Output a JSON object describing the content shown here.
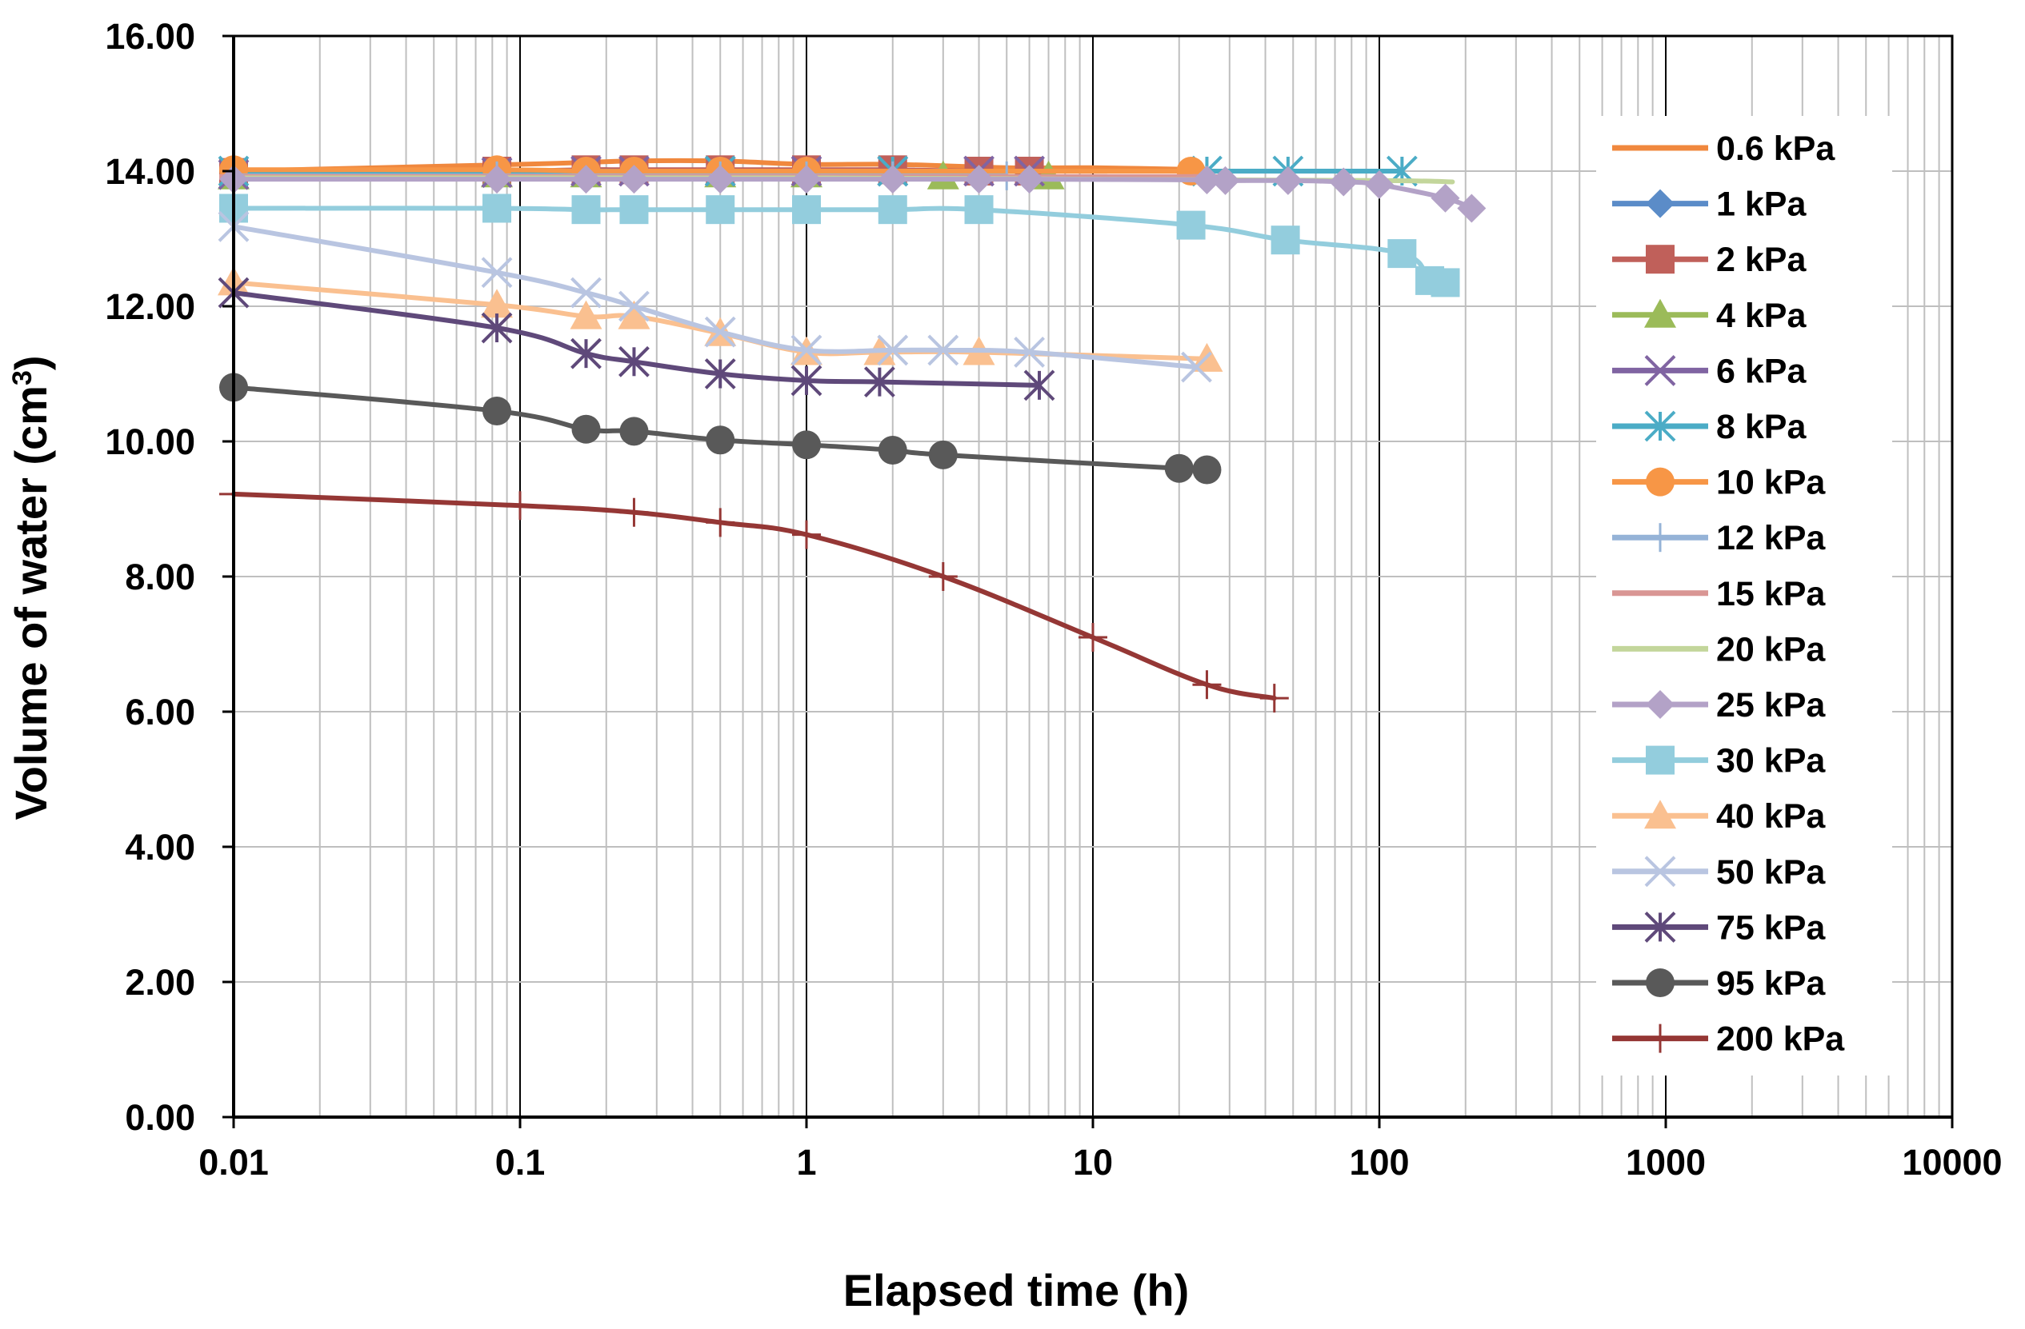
{
  "chart_data": {
    "type": "line",
    "title": "",
    "xlabel": "Elapsed time (h)",
    "ylabel": "Volume of water (cm3)",
    "ylabel_main": "Volume of water (cm",
    "ylabel_sup": "3",
    "ylabel_close": ")",
    "xscale": "log",
    "xlim": [
      0.01,
      10000
    ],
    "ylim": [
      0,
      16
    ],
    "x_ticks": [
      0.01,
      0.1,
      1,
      10,
      100,
      1000,
      10000
    ],
    "x_tick_labels": [
      "0.01",
      "0.1",
      "1",
      "10",
      "100",
      "1000",
      "10000"
    ],
    "y_ticks": [
      0,
      2,
      4,
      6,
      8,
      10,
      12,
      14,
      16
    ],
    "y_tick_labels": [
      "0.00",
      "2.00",
      "4.00",
      "6.00",
      "8.00",
      "10.00",
      "12.00",
      "14.00",
      "16.00"
    ],
    "grid": true,
    "legend_position": "right",
    "series": [
      {
        "name": "0.6 kPa",
        "color": "#F0883E",
        "marker": "none",
        "x": [
          0.01,
          0.1,
          0.25,
          0.5,
          1,
          2,
          5,
          10,
          25
        ],
        "y": [
          14.0,
          14.1,
          14.15,
          14.15,
          14.1,
          14.1,
          14.05,
          14.05,
          14.02
        ]
      },
      {
        "name": "1 kPa",
        "color": "#5B8CC8",
        "marker": "diamond",
        "x": [
          0.01,
          0.083,
          0.17,
          0.25,
          0.5,
          1,
          2,
          4,
          6
        ],
        "y": [
          14.0,
          14.0,
          14.0,
          14.0,
          14.0,
          14.0,
          14.0,
          14.0,
          14.0
        ]
      },
      {
        "name": "2 kPa",
        "color": "#C0605A",
        "marker": "square",
        "x": [
          0.01,
          0.083,
          0.17,
          0.25,
          0.5,
          1,
          2,
          4,
          6
        ],
        "y": [
          13.98,
          14.0,
          14.02,
          14.02,
          14.02,
          14.02,
          14.02,
          14.0,
          14.0
        ]
      },
      {
        "name": "4 kPa",
        "color": "#9BBB59",
        "marker": "triangle",
        "x": [
          0.01,
          0.083,
          0.17,
          0.5,
          1,
          3,
          7
        ],
        "y": [
          13.92,
          13.95,
          13.95,
          13.95,
          13.95,
          13.92,
          13.92
        ]
      },
      {
        "name": "6 kPa",
        "color": "#8064A2",
        "marker": "x",
        "x": [
          0.01,
          0.083,
          0.17,
          0.25,
          0.5,
          1,
          2,
          4,
          6
        ],
        "y": [
          13.95,
          13.98,
          14.0,
          14.0,
          14.0,
          14.0,
          14.0,
          14.0,
          14.0
        ]
      },
      {
        "name": "8 kPa",
        "color": "#4BACC6",
        "marker": "asterisk",
        "x": [
          0.01,
          0.5,
          2,
          25,
          48,
          120
        ],
        "y": [
          14.0,
          14.0,
          14.0,
          14.0,
          14.0,
          14.0
        ]
      },
      {
        "name": "10 kPa",
        "color": "#F79646",
        "marker": "circle",
        "x": [
          0.01,
          0.083,
          0.17,
          0.25,
          0.5,
          1,
          22
        ],
        "y": [
          14.02,
          14.02,
          14.0,
          14.0,
          14.0,
          14.0,
          14.0
        ]
      },
      {
        "name": "12 kPa",
        "color": "#95B3D7",
        "marker": "plus",
        "x": [
          0.01,
          0.083,
          0.5,
          1,
          2,
          5
        ],
        "y": [
          13.93,
          13.93,
          13.93,
          13.93,
          13.93,
          13.93
        ]
      },
      {
        "name": "15 kPa",
        "color": "#D99694",
        "marker": "dash",
        "x": [
          0.01,
          0.1,
          1,
          10,
          25
        ],
        "y": [
          13.92,
          13.92,
          13.92,
          13.92,
          13.92
        ]
      },
      {
        "name": "20 kPa",
        "color": "#C3D69B",
        "marker": "none",
        "x": [
          0.01,
          1,
          10,
          100,
          180
        ],
        "y": [
          13.9,
          13.9,
          13.88,
          13.86,
          13.84
        ]
      },
      {
        "name": "25 kPa",
        "color": "#B3A2C7",
        "marker": "diamond",
        "x": [
          0.01,
          0.083,
          0.17,
          0.25,
          0.5,
          1,
          2,
          4,
          6,
          25,
          29,
          48,
          75,
          100,
          170,
          210
        ],
        "y": [
          13.88,
          13.88,
          13.88,
          13.88,
          13.88,
          13.88,
          13.88,
          13.88,
          13.88,
          13.87,
          13.86,
          13.86,
          13.84,
          13.8,
          13.6,
          13.45
        ]
      },
      {
        "name": "30 kPa",
        "color": "#93CDDD",
        "marker": "square",
        "x": [
          0.01,
          0.083,
          0.17,
          0.25,
          0.5,
          1,
          2,
          4,
          22,
          47,
          120,
          150,
          170
        ],
        "y": [
          13.45,
          13.45,
          13.43,
          13.43,
          13.43,
          13.43,
          13.43,
          13.43,
          13.2,
          12.98,
          12.78,
          12.38,
          12.35
        ]
      },
      {
        "name": "40 kPa",
        "color": "#FAC090",
        "marker": "triangle",
        "x": [
          0.01,
          0.083,
          0.17,
          0.25,
          0.5,
          1,
          1.8,
          4,
          25
        ],
        "y": [
          12.35,
          12.02,
          11.85,
          11.85,
          11.6,
          11.32,
          11.32,
          11.32,
          11.22
        ]
      },
      {
        "name": "50 kPa",
        "color": "#B9C5E1",
        "marker": "x",
        "x": [
          0.01,
          0.083,
          0.17,
          0.25,
          0.5,
          1,
          2,
          3,
          6,
          23
        ],
        "y": [
          13.18,
          12.5,
          12.2,
          12.0,
          11.62,
          11.35,
          11.35,
          11.35,
          11.32,
          11.1
        ]
      },
      {
        "name": "75 kPa",
        "color": "#5F497A",
        "marker": "asterisk",
        "x": [
          0.01,
          0.083,
          0.17,
          0.25,
          0.5,
          1,
          1.8,
          6.5
        ],
        "y": [
          12.2,
          11.68,
          11.3,
          11.18,
          11.0,
          10.9,
          10.88,
          10.83
        ]
      },
      {
        "name": "95 kPa",
        "color": "#595959",
        "marker": "circle",
        "x": [
          0.01,
          0.083,
          0.17,
          0.25,
          0.5,
          1,
          2,
          3,
          20,
          25
        ],
        "y": [
          10.8,
          10.45,
          10.18,
          10.15,
          10.02,
          9.95,
          9.87,
          9.8,
          9.6,
          9.58
        ]
      },
      {
        "name": "200 kPa",
        "color": "#953735",
        "marker": "plus",
        "x": [
          0.01,
          0.1,
          0.25,
          0.5,
          1,
          3,
          10,
          25,
          43
        ],
        "y": [
          9.22,
          9.05,
          8.95,
          8.8,
          8.62,
          8.0,
          7.1,
          6.4,
          6.2
        ]
      }
    ]
  },
  "colors": {
    "grid": "#BFBFBF",
    "grid_major_x": "#000000",
    "axis": "#000000"
  }
}
